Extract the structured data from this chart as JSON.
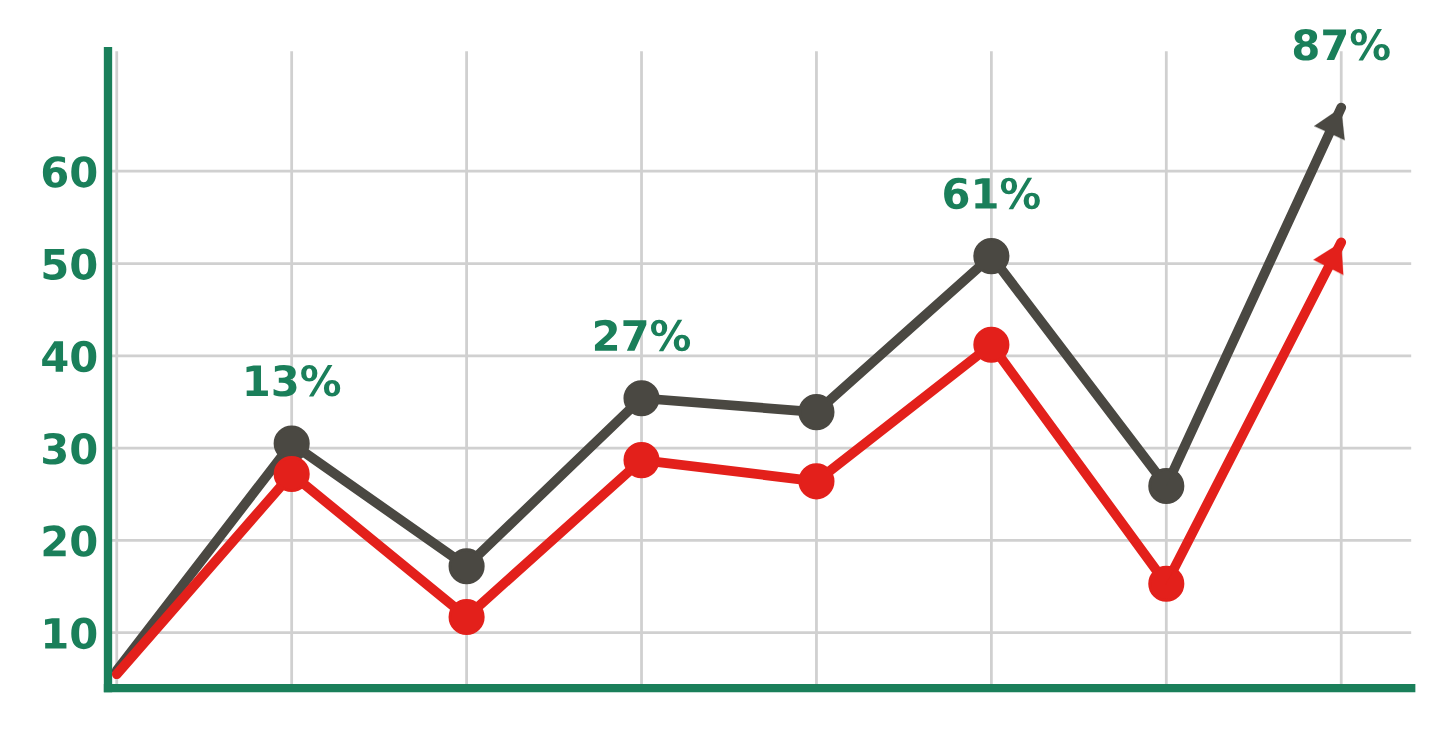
{
  "chart_data": {
    "type": "line",
    "categories": [
      null,
      null,
      null,
      null,
      null,
      null,
      null,
      null
    ],
    "series": [
      {
        "color": "#4a4842",
        "values": [
          5.9,
          30.5,
          17.2,
          35.4,
          33.9,
          50.8,
          25.9,
          66.9
        ]
      },
      {
        "color": "#e3201b",
        "values": [
          5.5,
          27.2,
          11.7,
          28.7,
          26.4,
          41.2,
          15.3,
          52.3
        ]
      }
    ],
    "ylim": [
      4,
      73
    ],
    "yticks": [
      10,
      20,
      30,
      40,
      50,
      60
    ],
    "annotations": [
      {
        "text": "13%",
        "y": 30.5
      },
      {
        "text": "27%",
        "y": 35.4
      },
      {
        "text": "61%",
        "y": 50.8
      },
      {
        "text": "87%",
        "y": 66.9
      }
    ],
    "grid": true,
    "marker": "circle",
    "line_style": "solid",
    "tick_labels": "y"
  }
}
